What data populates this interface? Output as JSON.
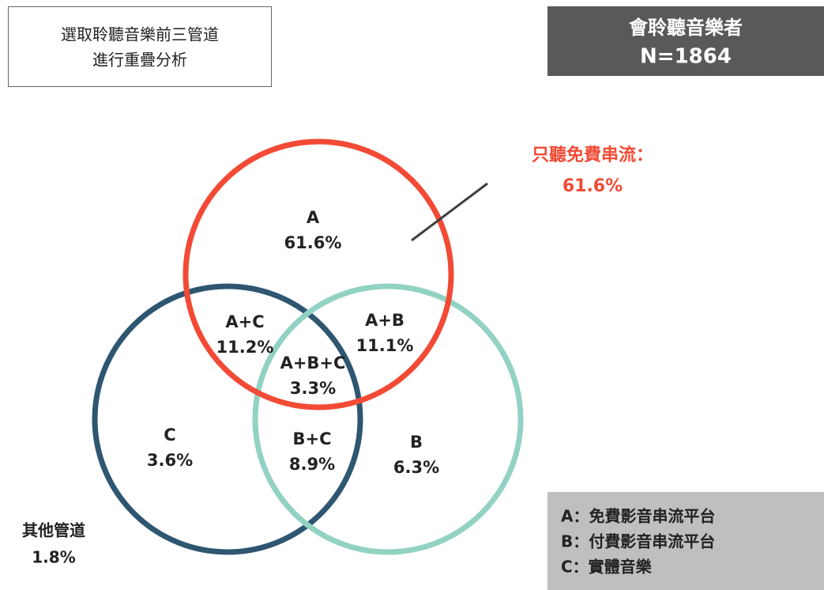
{
  "header": {
    "lines": [
      "選取聆聽音樂前三管道",
      "進行重疊分析"
    ]
  },
  "sample": {
    "lines": [
      "會聆聽音樂者",
      "N=1864"
    ]
  },
  "callout": {
    "lines": [
      "只聽免費串流：",
      "61.6%"
    ]
  },
  "regions": [
    {
      "label": "A",
      "value": "61.6%"
    },
    {
      "label": "A+C",
      "value": "11.2%"
    },
    {
      "label": "A+B",
      "value": "11.1%"
    },
    {
      "label": "A+B+C",
      "value": "3.3%"
    },
    {
      "label": "C",
      "value": "3.6%"
    },
    {
      "label": "B+C",
      "value": "8.9%"
    },
    {
      "label": "B",
      "value": "6.3%"
    }
  ],
  "other": {
    "label": "其他管道",
    "value": "1.8%"
  },
  "legend": [
    "A：免費影音串流平台",
    "B：付費影音串流平台",
    "C：實體音樂"
  ]
}
